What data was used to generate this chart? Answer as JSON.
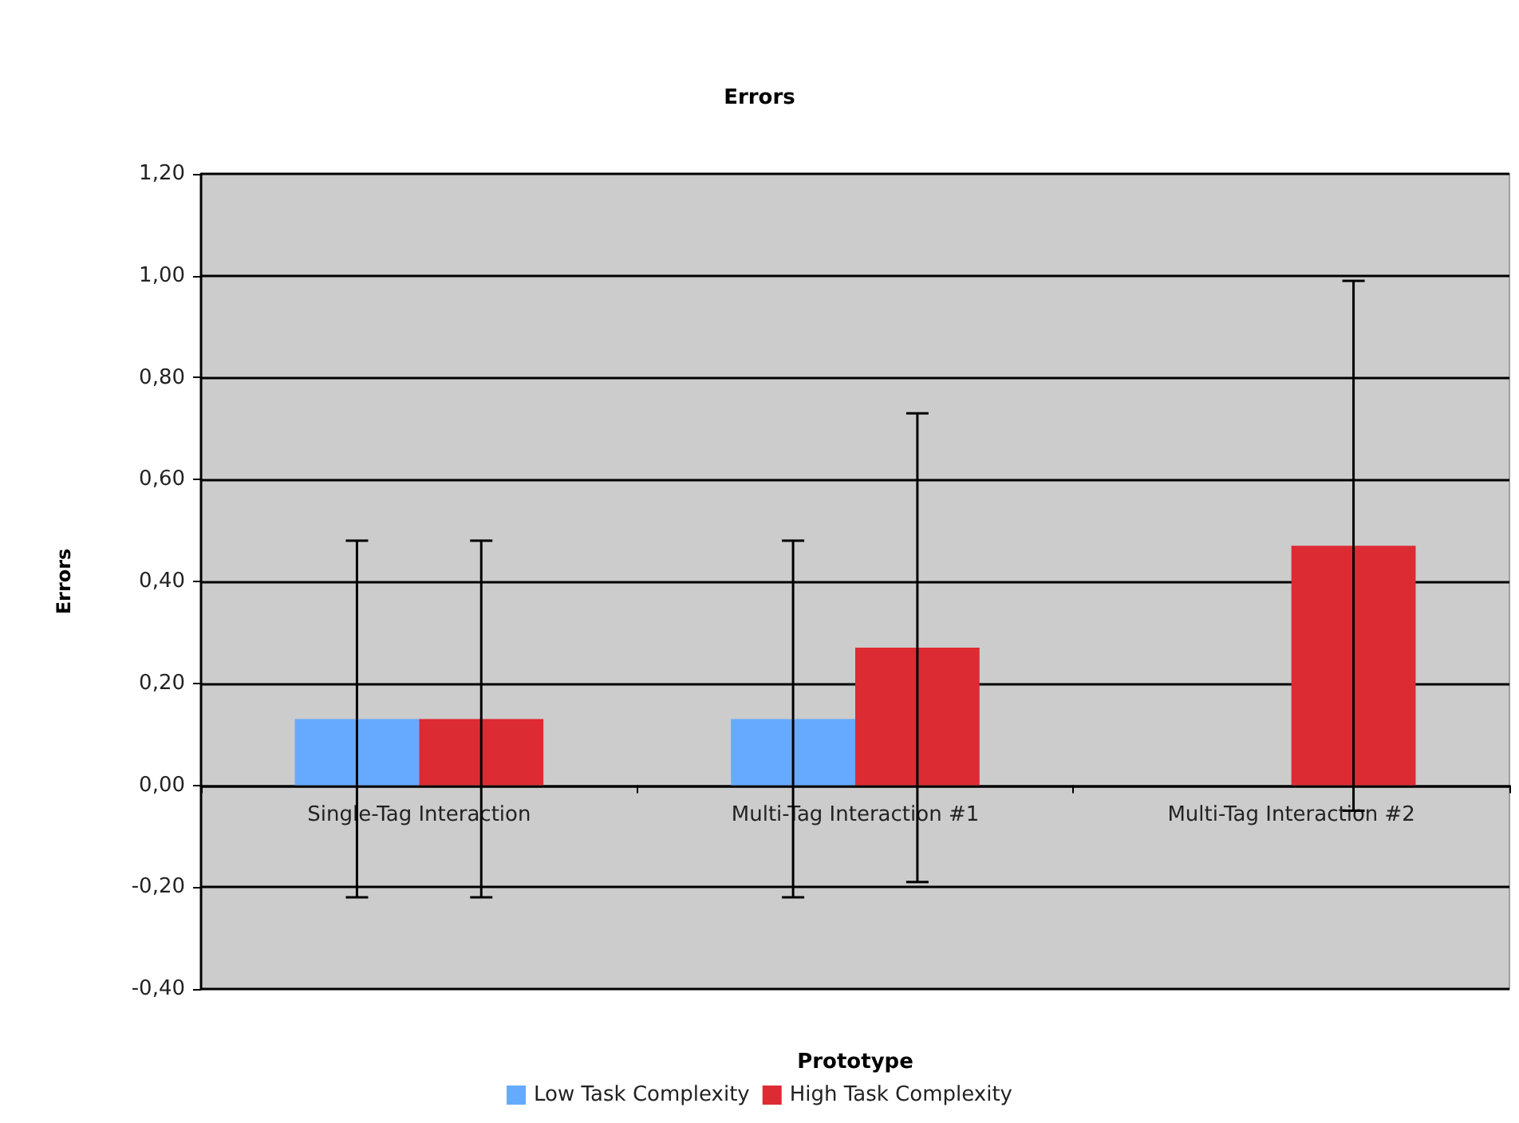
{
  "chart_data": {
    "type": "bar",
    "title": "Errors",
    "xlabel": "Prototype",
    "ylabel": "Errors",
    "categories": [
      "Single-Tag Interaction",
      "Multi-Tag Interaction #1",
      "Multi-Tag Interaction #2"
    ],
    "series": [
      {
        "name": "Low Task Complexity",
        "color": "#66aaff",
        "values": [
          0.13,
          0.13,
          null
        ],
        "errors": [
          0.35,
          0.35,
          null
        ]
      },
      {
        "name": "High Task Complexity",
        "color": "#dd2b33",
        "values": [
          0.13,
          0.27,
          0.47
        ],
        "errors": [
          0.35,
          0.46,
          0.52
        ]
      }
    ],
    "ylim": [
      -0.4,
      1.2
    ],
    "yticks": [
      {
        "value": -0.4,
        "label": "-0,40"
      },
      {
        "value": -0.2,
        "label": "-0,20"
      },
      {
        "value": 0,
        "label": "0,00"
      },
      {
        "value": 0.2,
        "label": "0,20"
      },
      {
        "value": 0.4,
        "label": "0,40"
      },
      {
        "value": 0.6,
        "label": "0,60"
      },
      {
        "value": 0.8,
        "label": "0,80"
      },
      {
        "value": 1.0,
        "label": "1,00"
      },
      {
        "value": 1.2,
        "label": "1,20"
      }
    ],
    "grid": "y",
    "legend": "bottom"
  }
}
